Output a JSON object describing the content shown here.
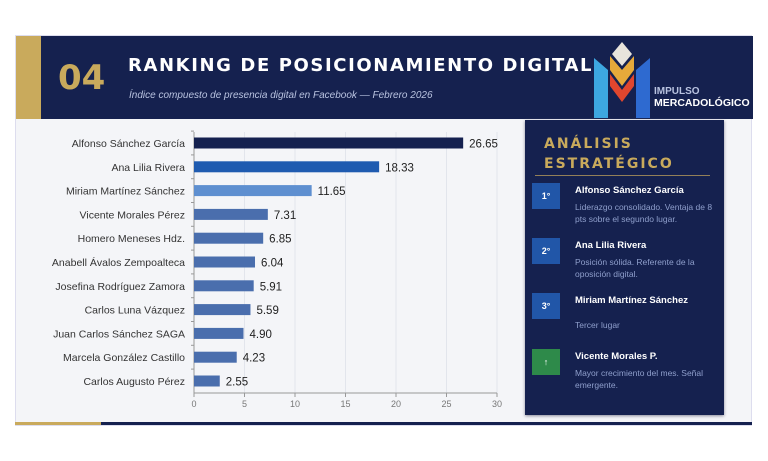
{
  "header": {
    "number": "04",
    "title": "RANKING DE POSICIONAMIENTO DIGITAL",
    "subtitle": "Índice compuesto de presencia digital en Facebook — Febrero 2026",
    "logo_text": [
      "IMPULSO",
      "MERCADOLÓGICO"
    ]
  },
  "colors": {
    "navy": "#15214f",
    "gold": "#c9aa5c",
    "bar_first": "#14204f",
    "bar_second": "#1f5bb0",
    "bar_third": "#5e8fd0",
    "bar_rest": "#4a6ead",
    "green": "#2e8a4a"
  },
  "chart_data": {
    "type": "bar",
    "orientation": "horizontal",
    "categories": [
      "Alfonso Sánchez García",
      "Ana Lilia Rivera",
      "Miriam Martínez Sánchez",
      "Vicente Morales Pérez",
      "Homero Meneses Hdz.",
      "Anabell Ávalos Zempoalteca",
      "Josefina Rodríguez Zamora",
      "Carlos Luna Vázquez",
      "Juan Carlos Sánchez SAGA",
      "Marcela González Castillo",
      "Carlos Augusto Pérez"
    ],
    "values": [
      26.65,
      18.33,
      11.65,
      7.31,
      6.85,
      6.04,
      5.91,
      5.59,
      4.9,
      4.23,
      2.55
    ],
    "value_labels": [
      "26.65",
      "18.33",
      "11.65",
      "7.31",
      "6.85",
      "6.04",
      "5.91",
      "5.59",
      "4.90",
      "4.23",
      "2.55"
    ],
    "xlim": [
      0,
      30
    ],
    "xticks": [
      "0",
      "5",
      "10",
      "15",
      "20",
      "25",
      "30"
    ],
    "grid": true
  },
  "panel": {
    "title_line1": "ANÁLISIS",
    "title_line2": "ESTRATÉGICO",
    "items": [
      {
        "badge": "1°",
        "name": "Alfonso Sánchez García",
        "desc": "Liderazgo consolidado. Ventaja de 8 pts sobre el segundo lugar."
      },
      {
        "badge": "2°",
        "name": "Ana Lilia Rivera",
        "desc": "Posición sólida. Referente de la oposición digital."
      },
      {
        "badge": "3°",
        "name": "Miriam Martínez Sánchez",
        "desc": "Tercer lugar"
      },
      {
        "badge": "↑",
        "name": "Vicente Morales P.",
        "desc": "Mayor crecimiento del mes. Señal emergente.",
        "icon": "arrow-up-icon"
      }
    ]
  }
}
